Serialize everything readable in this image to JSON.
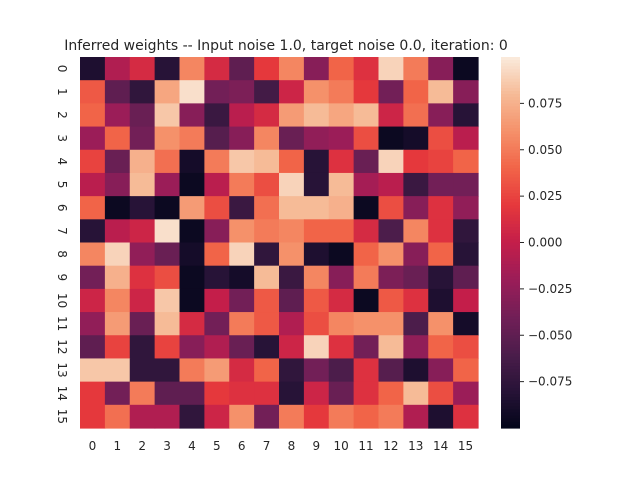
{
  "chart_data": {
    "type": "heatmap",
    "title": "Inferred weights -- Input noise 1.0, target noise 0.0, iteration: 0",
    "xlabel": "",
    "ylabel": "",
    "x_tick_labels": [
      "0",
      "1",
      "2",
      "3",
      "4",
      "5",
      "6",
      "7",
      "8",
      "9",
      "10",
      "11",
      "12",
      "13",
      "14",
      "15"
    ],
    "y_tick_labels": [
      "0",
      "1",
      "2",
      "3",
      "4",
      "5",
      "6",
      "7",
      "8",
      "9",
      "10",
      "11",
      "12",
      "13",
      "14",
      "15"
    ],
    "y_tick_rotation": "vertical",
    "colorbar": {
      "vmin": -0.1,
      "vmax": 0.1,
      "tick_values": [
        -0.075,
        -0.05,
        -0.025,
        0.0,
        0.025,
        0.05,
        0.075
      ],
      "tick_labels": [
        "−0.075",
        "−0.050",
        "−0.025",
        "0.000",
        "0.025",
        "0.050",
        "0.075"
      ]
    },
    "colormap": "rocket",
    "values": [
      [
        -0.085,
        -0.01,
        0.01,
        -0.08,
        0.055,
        0.01,
        -0.05,
        0.02,
        0.055,
        -0.03,
        0.04,
        0.015,
        0.09,
        0.05,
        -0.03,
        -0.095
      ],
      [
        0.035,
        -0.05,
        -0.075,
        0.07,
        0.095,
        -0.04,
        -0.035,
        -0.065,
        0.005,
        0.06,
        0.05,
        0.02,
        -0.04,
        0.04,
        0.08,
        -0.03
      ],
      [
        0.04,
        -0.02,
        -0.045,
        0.085,
        -0.03,
        -0.07,
        -0.005,
        0.01,
        0.065,
        0.08,
        0.07,
        0.08,
        0.005,
        0.045,
        -0.03,
        -0.08
      ],
      [
        -0.02,
        0.04,
        -0.04,
        0.06,
        0.05,
        -0.055,
        -0.03,
        0.055,
        -0.045,
        -0.025,
        -0.02,
        0.03,
        -0.095,
        -0.09,
        0.03,
        -0.005
      ],
      [
        0.025,
        -0.045,
        0.075,
        0.045,
        -0.09,
        0.05,
        0.085,
        0.08,
        0.04,
        -0.08,
        0.015,
        -0.045,
        0.09,
        0.02,
        0.025,
        0.04
      ],
      [
        -0.005,
        -0.03,
        0.08,
        -0.02,
        -0.095,
        -0.005,
        0.05,
        0.03,
        0.09,
        -0.08,
        0.08,
        -0.015,
        -0.005,
        -0.07,
        -0.04,
        -0.04
      ],
      [
        0.04,
        -0.095,
        -0.08,
        -0.095,
        0.065,
        0.03,
        -0.07,
        0.045,
        0.08,
        0.08,
        0.075,
        -0.095,
        0.03,
        -0.03,
        0.015,
        -0.025
      ],
      [
        -0.08,
        -0.005,
        0.005,
        0.095,
        -0.095,
        -0.03,
        0.06,
        0.05,
        0.055,
        0.04,
        0.04,
        0.01,
        -0.06,
        0.055,
        0.015,
        -0.075
      ],
      [
        0.055,
        0.09,
        -0.025,
        -0.045,
        -0.09,
        0.04,
        0.09,
        -0.075,
        0.06,
        -0.085,
        -0.095,
        0.04,
        0.06,
        -0.03,
        0.04,
        -0.08
      ],
      [
        -0.04,
        0.075,
        0.015,
        0.03,
        -0.095,
        -0.08,
        -0.09,
        0.08,
        -0.07,
        0.055,
        -0.03,
        0.05,
        -0.035,
        -0.045,
        -0.08,
        -0.05
      ],
      [
        0.005,
        0.055,
        0.005,
        0.085,
        -0.095,
        0.0,
        -0.04,
        0.035,
        -0.05,
        0.035,
        0.01,
        -0.095,
        0.035,
        0.015,
        -0.085,
        0.0
      ],
      [
        -0.025,
        0.065,
        -0.045,
        0.08,
        0.01,
        -0.04,
        0.05,
        0.035,
        -0.01,
        0.03,
        0.055,
        0.06,
        0.06,
        -0.06,
        0.06,
        -0.09
      ],
      [
        -0.05,
        0.025,
        -0.075,
        0.025,
        -0.03,
        -0.01,
        -0.045,
        -0.08,
        0.005,
        0.09,
        0.015,
        -0.04,
        0.08,
        -0.025,
        0.04,
        0.03
      ],
      [
        0.085,
        0.085,
        -0.075,
        -0.075,
        0.05,
        0.065,
        0.01,
        0.04,
        -0.075,
        -0.04,
        -0.06,
        0.015,
        -0.055,
        -0.085,
        -0.03,
        0.04
      ],
      [
        0.02,
        -0.04,
        0.05,
        -0.05,
        -0.05,
        0.02,
        0.015,
        0.015,
        -0.08,
        0.005,
        -0.045,
        0.015,
        0.04,
        0.08,
        0.03,
        -0.02
      ],
      [
        0.02,
        0.045,
        -0.01,
        -0.01,
        -0.075,
        0.005,
        0.06,
        -0.04,
        0.05,
        0.02,
        0.05,
        0.04,
        0.05,
        -0.01,
        -0.085,
        0.015
      ]
    ]
  }
}
